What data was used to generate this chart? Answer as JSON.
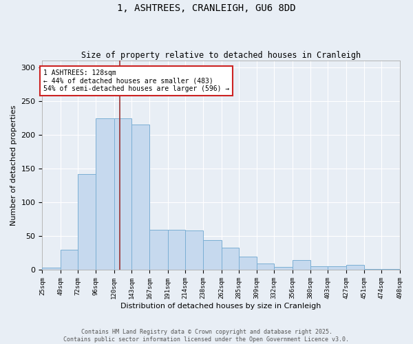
{
  "title": "1, ASHTREES, CRANLEIGH, GU6 8DD",
  "subtitle": "Size of property relative to detached houses in Cranleigh",
  "xlabel": "Distribution of detached houses by size in Cranleigh",
  "ylabel": "Number of detached properties",
  "bar_color": "#c6d9ee",
  "bar_edge_color": "#7bafd4",
  "background_color": "#e8eef5",
  "grid_color": "#ffffff",
  "vline_x": 128,
  "vline_color": "#993333",
  "annotation_line1": "1 ASHTREES: 128sqm",
  "annotation_line2": "← 44% of detached houses are smaller (483)",
  "annotation_line3": "54% of semi-detached houses are larger (596) →",
  "annotation_box_color": "#ffffff",
  "annotation_border_color": "#cc2222",
  "bins": [
    25,
    49,
    72,
    96,
    120,
    143,
    167,
    191,
    214,
    238,
    262,
    285,
    309,
    332,
    356,
    380,
    403,
    427,
    451,
    474,
    498
  ],
  "bar_counts": [
    4,
    30,
    142,
    225,
    225,
    215,
    60,
    60,
    59,
    44,
    33,
    20,
    10,
    5,
    15,
    6,
    6,
    8,
    2,
    1
  ],
  "tick_labels": [
    "25sqm",
    "49sqm",
    "72sqm",
    "96sqm",
    "120sqm",
    "143sqm",
    "167sqm",
    "191sqm",
    "214sqm",
    "238sqm",
    "262sqm",
    "285sqm",
    "309sqm",
    "332sqm",
    "356sqm",
    "380sqm",
    "403sqm",
    "427sqm",
    "451sqm",
    "474sqm",
    "498sqm"
  ],
  "ylim": [
    0,
    310
  ],
  "yticks": [
    0,
    50,
    100,
    150,
    200,
    250,
    300
  ],
  "footer_text": "Contains HM Land Registry data © Crown copyright and database right 2025.\nContains public sector information licensed under the Open Government Licence v3.0.",
  "figsize": [
    6.0,
    5.0
  ],
  "dpi": 100
}
